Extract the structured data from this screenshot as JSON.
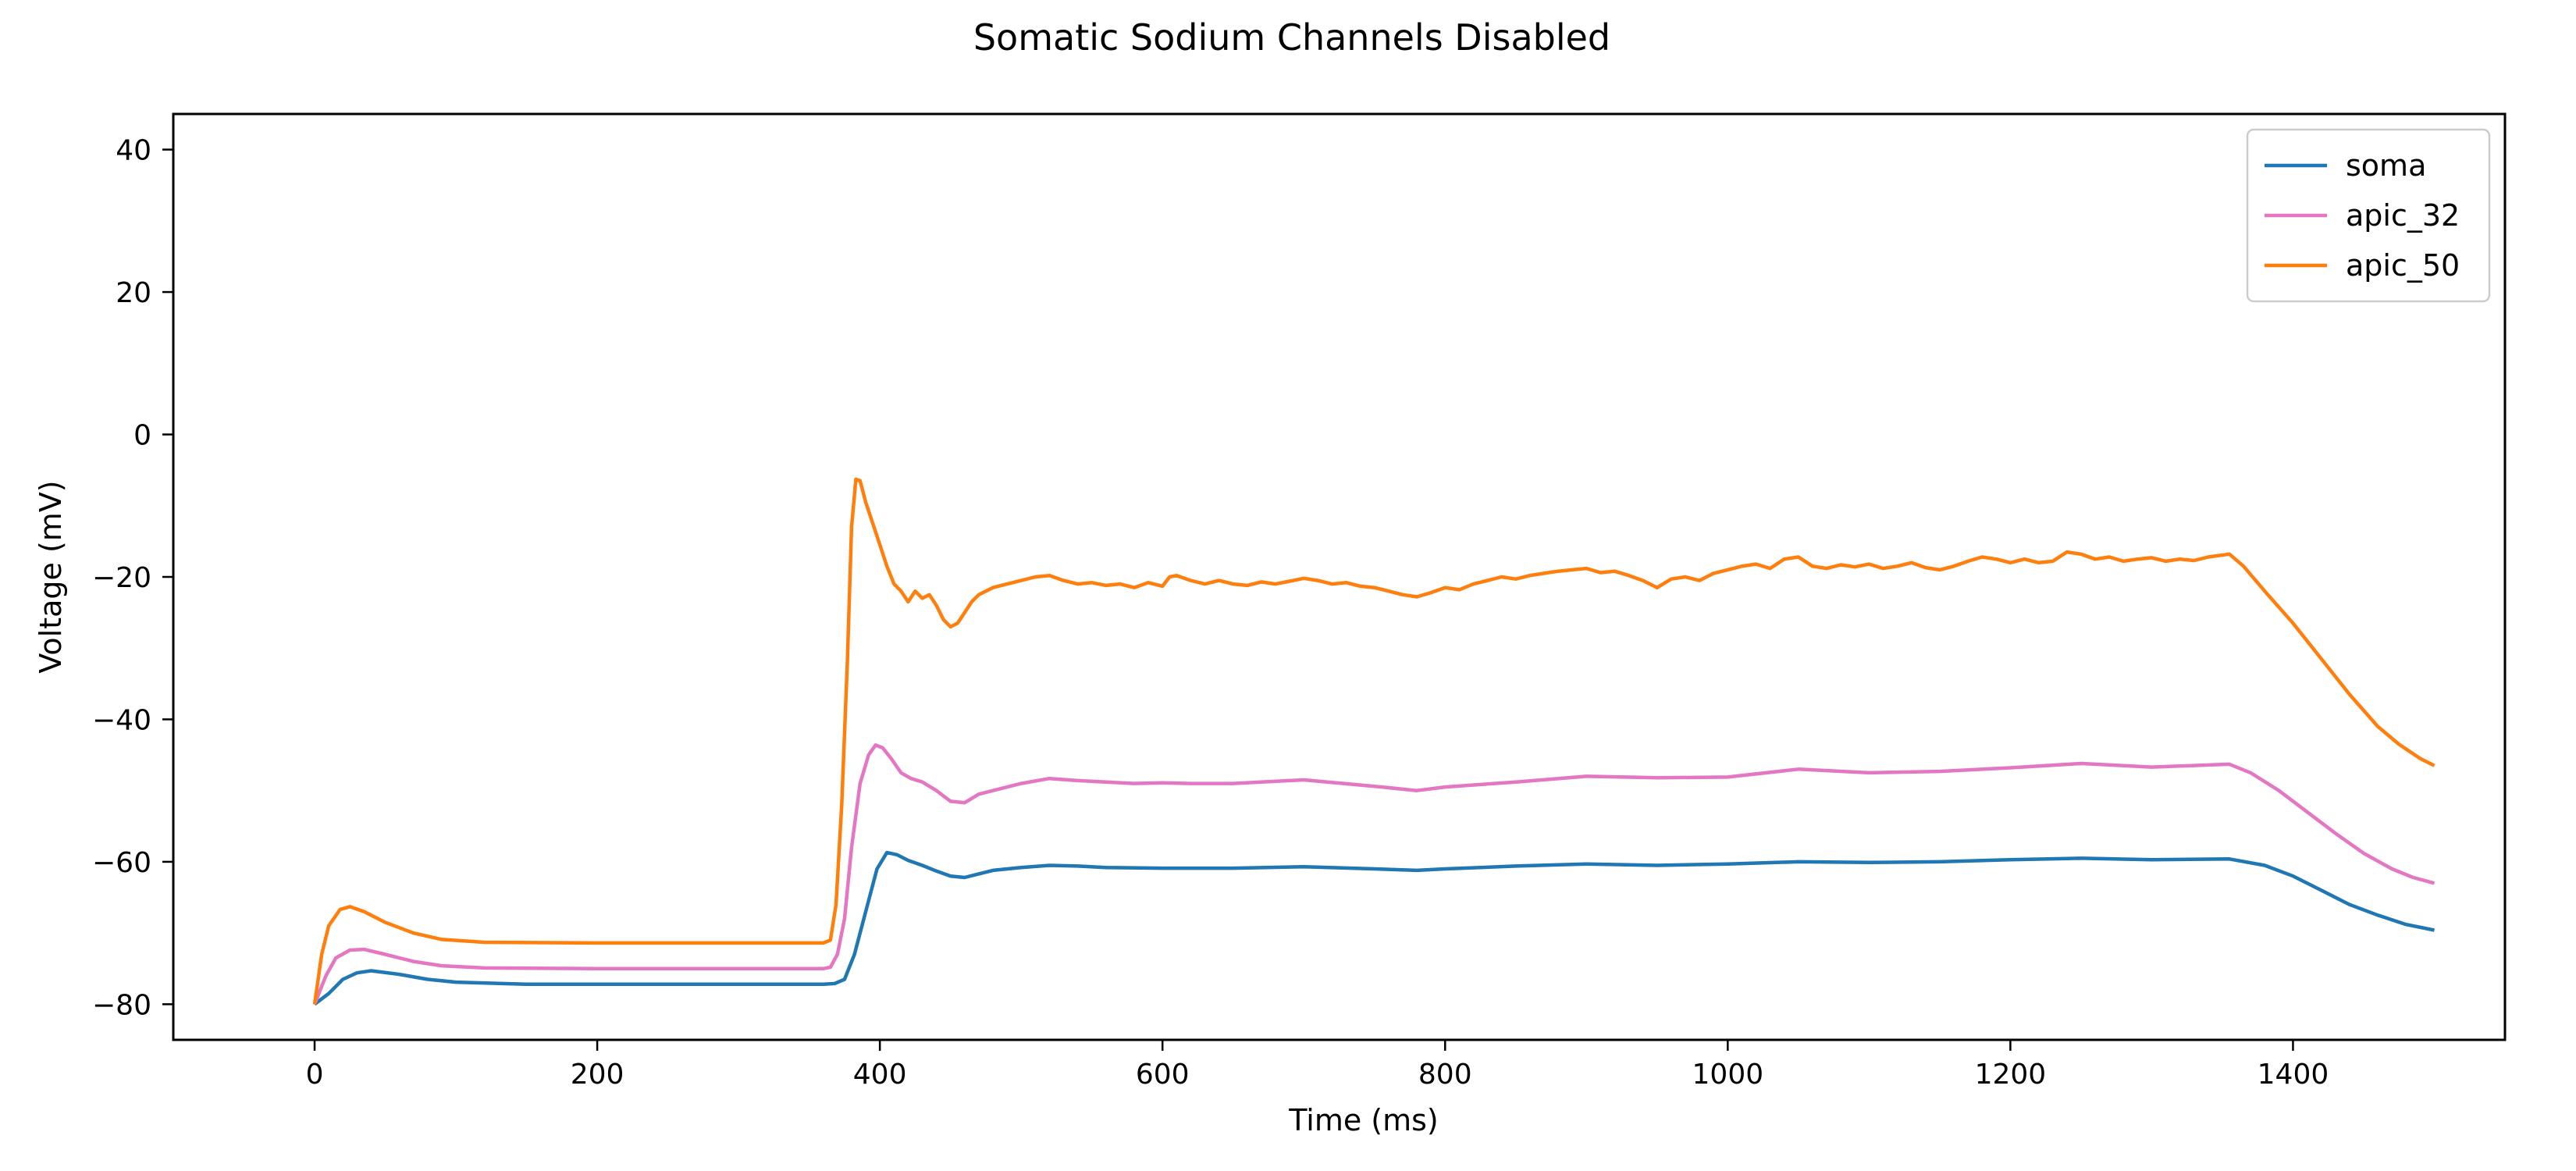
{
  "chart_data": {
    "type": "line",
    "title": "Somatic Sodium Channels Disabled",
    "xlabel": "Time (ms)",
    "ylabel": "Voltage (mV)",
    "xlim": [
      -100,
      1550
    ],
    "ylim": [
      -85,
      45
    ],
    "xticks": [
      0,
      200,
      400,
      600,
      800,
      1000,
      1200,
      1400
    ],
    "yticks": [
      -80,
      -60,
      -40,
      -20,
      0,
      20,
      40
    ],
    "grid": false,
    "legend_position": "top-right",
    "series": [
      {
        "name": "soma",
        "color": "#1f77b4",
        "points": [
          [
            0,
            -80
          ],
          [
            10,
            -78.5
          ],
          [
            20,
            -76.5
          ],
          [
            30,
            -75.6
          ],
          [
            40,
            -75.3
          ],
          [
            60,
            -75.8
          ],
          [
            80,
            -76.5
          ],
          [
            100,
            -76.9
          ],
          [
            150,
            -77.2
          ],
          [
            200,
            -77.2
          ],
          [
            300,
            -77.2
          ],
          [
            360,
            -77.2
          ],
          [
            368,
            -77.1
          ],
          [
            375,
            -76.5
          ],
          [
            382,
            -73
          ],
          [
            390,
            -67
          ],
          [
            398,
            -61
          ],
          [
            405,
            -58.7
          ],
          [
            412,
            -59
          ],
          [
            420,
            -59.8
          ],
          [
            430,
            -60.5
          ],
          [
            440,
            -61.3
          ],
          [
            450,
            -62
          ],
          [
            460,
            -62.2
          ],
          [
            470,
            -61.7
          ],
          [
            480,
            -61.2
          ],
          [
            500,
            -60.8
          ],
          [
            520,
            -60.5
          ],
          [
            540,
            -60.6
          ],
          [
            560,
            -60.8
          ],
          [
            600,
            -60.9
          ],
          [
            650,
            -60.9
          ],
          [
            700,
            -60.7
          ],
          [
            750,
            -61
          ],
          [
            780,
            -61.2
          ],
          [
            800,
            -61
          ],
          [
            850,
            -60.6
          ],
          [
            900,
            -60.3
          ],
          [
            950,
            -60.5
          ],
          [
            1000,
            -60.3
          ],
          [
            1050,
            -60
          ],
          [
            1100,
            -60.1
          ],
          [
            1150,
            -60
          ],
          [
            1200,
            -59.7
          ],
          [
            1250,
            -59.5
          ],
          [
            1300,
            -59.7
          ],
          [
            1355,
            -59.6
          ],
          [
            1380,
            -60.5
          ],
          [
            1400,
            -62
          ],
          [
            1420,
            -64
          ],
          [
            1440,
            -66
          ],
          [
            1460,
            -67.5
          ],
          [
            1480,
            -68.8
          ],
          [
            1500,
            -69.6
          ]
        ]
      },
      {
        "name": "apic_32",
        "color": "#e377c2",
        "points": [
          [
            0,
            -80
          ],
          [
            8,
            -76
          ],
          [
            15,
            -73.5
          ],
          [
            25,
            -72.4
          ],
          [
            35,
            -72.3
          ],
          [
            50,
            -73
          ],
          [
            70,
            -74
          ],
          [
            90,
            -74.6
          ],
          [
            120,
            -74.9
          ],
          [
            200,
            -75
          ],
          [
            300,
            -75
          ],
          [
            360,
            -75
          ],
          [
            365,
            -74.8
          ],
          [
            370,
            -73
          ],
          [
            375,
            -68
          ],
          [
            380,
            -58
          ],
          [
            386,
            -49
          ],
          [
            392,
            -45
          ],
          [
            397,
            -43.6
          ],
          [
            402,
            -44
          ],
          [
            408,
            -45.5
          ],
          [
            415,
            -47.5
          ],
          [
            422,
            -48.3
          ],
          [
            430,
            -48.8
          ],
          [
            440,
            -50
          ],
          [
            450,
            -51.5
          ],
          [
            460,
            -51.7
          ],
          [
            470,
            -50.5
          ],
          [
            480,
            -50
          ],
          [
            500,
            -49
          ],
          [
            520,
            -48.3
          ],
          [
            540,
            -48.6
          ],
          [
            560,
            -48.8
          ],
          [
            580,
            -49
          ],
          [
            600,
            -48.9
          ],
          [
            620,
            -49
          ],
          [
            650,
            -49
          ],
          [
            700,
            -48.5
          ],
          [
            750,
            -49.4
          ],
          [
            780,
            -50
          ],
          [
            800,
            -49.5
          ],
          [
            850,
            -48.8
          ],
          [
            900,
            -48
          ],
          [
            950,
            -48.2
          ],
          [
            1000,
            -48.1
          ],
          [
            1050,
            -47
          ],
          [
            1100,
            -47.5
          ],
          [
            1150,
            -47.3
          ],
          [
            1200,
            -46.8
          ],
          [
            1250,
            -46.2
          ],
          [
            1300,
            -46.7
          ],
          [
            1355,
            -46.3
          ],
          [
            1370,
            -47.5
          ],
          [
            1390,
            -50
          ],
          [
            1410,
            -53
          ],
          [
            1430,
            -56
          ],
          [
            1450,
            -58.8
          ],
          [
            1470,
            -61
          ],
          [
            1485,
            -62.2
          ],
          [
            1500,
            -63
          ]
        ]
      },
      {
        "name": "apic_50",
        "color": "#ff7f0e",
        "points": [
          [
            0,
            -80
          ],
          [
            5,
            -73
          ],
          [
            10,
            -69
          ],
          [
            18,
            -66.7
          ],
          [
            25,
            -66.3
          ],
          [
            35,
            -67
          ],
          [
            50,
            -68.5
          ],
          [
            70,
            -70
          ],
          [
            90,
            -70.9
          ],
          [
            120,
            -71.3
          ],
          [
            200,
            -71.4
          ],
          [
            300,
            -71.4
          ],
          [
            360,
            -71.4
          ],
          [
            365,
            -71
          ],
          [
            369,
            -66
          ],
          [
            373,
            -52
          ],
          [
            377,
            -32
          ],
          [
            380,
            -13
          ],
          [
            383,
            -6.3
          ],
          [
            386,
            -6.5
          ],
          [
            390,
            -9.5
          ],
          [
            395,
            -12.5
          ],
          [
            400,
            -15.5
          ],
          [
            405,
            -18.5
          ],
          [
            410,
            -21
          ],
          [
            415,
            -22
          ],
          [
            420,
            -23.5
          ],
          [
            425,
            -22
          ],
          [
            430,
            -23
          ],
          [
            435,
            -22.5
          ],
          [
            440,
            -24
          ],
          [
            445,
            -26
          ],
          [
            450,
            -27
          ],
          [
            455,
            -26.5
          ],
          [
            460,
            -25
          ],
          [
            465,
            -23.5
          ],
          [
            470,
            -22.5
          ],
          [
            480,
            -21.5
          ],
          [
            490,
            -21
          ],
          [
            500,
            -20.5
          ],
          [
            510,
            -20
          ],
          [
            520,
            -19.8
          ],
          [
            530,
            -20.5
          ],
          [
            540,
            -21
          ],
          [
            550,
            -20.8
          ],
          [
            560,
            -21.2
          ],
          [
            570,
            -21
          ],
          [
            580,
            -21.5
          ],
          [
            590,
            -20.8
          ],
          [
            600,
            -21.3
          ],
          [
            605,
            -20
          ],
          [
            610,
            -19.8
          ],
          [
            620,
            -20.5
          ],
          [
            630,
            -21
          ],
          [
            640,
            -20.5
          ],
          [
            650,
            -21
          ],
          [
            660,
            -21.2
          ],
          [
            670,
            -20.7
          ],
          [
            680,
            -21
          ],
          [
            690,
            -20.6
          ],
          [
            700,
            -20.2
          ],
          [
            710,
            -20.5
          ],
          [
            720,
            -21
          ],
          [
            730,
            -20.8
          ],
          [
            740,
            -21.3
          ],
          [
            750,
            -21.5
          ],
          [
            760,
            -22
          ],
          [
            770,
            -22.5
          ],
          [
            780,
            -22.8
          ],
          [
            790,
            -22.2
          ],
          [
            800,
            -21.5
          ],
          [
            810,
            -21.8
          ],
          [
            820,
            -21
          ],
          [
            830,
            -20.5
          ],
          [
            840,
            -20
          ],
          [
            850,
            -20.3
          ],
          [
            860,
            -19.8
          ],
          [
            870,
            -19.5
          ],
          [
            880,
            -19.2
          ],
          [
            890,
            -19
          ],
          [
            900,
            -18.8
          ],
          [
            910,
            -19.4
          ],
          [
            920,
            -19.2
          ],
          [
            930,
            -19.8
          ],
          [
            940,
            -20.5
          ],
          [
            950,
            -21.5
          ],
          [
            960,
            -20.3
          ],
          [
            970,
            -20
          ],
          [
            980,
            -20.5
          ],
          [
            990,
            -19.5
          ],
          [
            1000,
            -19
          ],
          [
            1010,
            -18.5
          ],
          [
            1020,
            -18.2
          ],
          [
            1030,
            -18.8
          ],
          [
            1040,
            -17.5
          ],
          [
            1050,
            -17.2
          ],
          [
            1060,
            -18.5
          ],
          [
            1070,
            -18.8
          ],
          [
            1080,
            -18.3
          ],
          [
            1090,
            -18.6
          ],
          [
            1100,
            -18.2
          ],
          [
            1110,
            -18.8
          ],
          [
            1120,
            -18.5
          ],
          [
            1130,
            -18
          ],
          [
            1140,
            -18.7
          ],
          [
            1150,
            -19
          ],
          [
            1160,
            -18.5
          ],
          [
            1170,
            -17.8
          ],
          [
            1180,
            -17.2
          ],
          [
            1190,
            -17.5
          ],
          [
            1200,
            -18
          ],
          [
            1210,
            -17.5
          ],
          [
            1220,
            -18
          ],
          [
            1230,
            -17.8
          ],
          [
            1240,
            -16.5
          ],
          [
            1250,
            -16.8
          ],
          [
            1260,
            -17.5
          ],
          [
            1270,
            -17.2
          ],
          [
            1280,
            -17.8
          ],
          [
            1290,
            -17.5
          ],
          [
            1300,
            -17.3
          ],
          [
            1310,
            -17.8
          ],
          [
            1320,
            -17.5
          ],
          [
            1330,
            -17.7
          ],
          [
            1340,
            -17.2
          ],
          [
            1355,
            -16.8
          ],
          [
            1365,
            -18.5
          ],
          [
            1380,
            -22
          ],
          [
            1400,
            -26.5
          ],
          [
            1420,
            -31.5
          ],
          [
            1440,
            -36.5
          ],
          [
            1460,
            -41
          ],
          [
            1475,
            -43.5
          ],
          [
            1490,
            -45.5
          ],
          [
            1500,
            -46.5
          ]
        ]
      }
    ]
  }
}
